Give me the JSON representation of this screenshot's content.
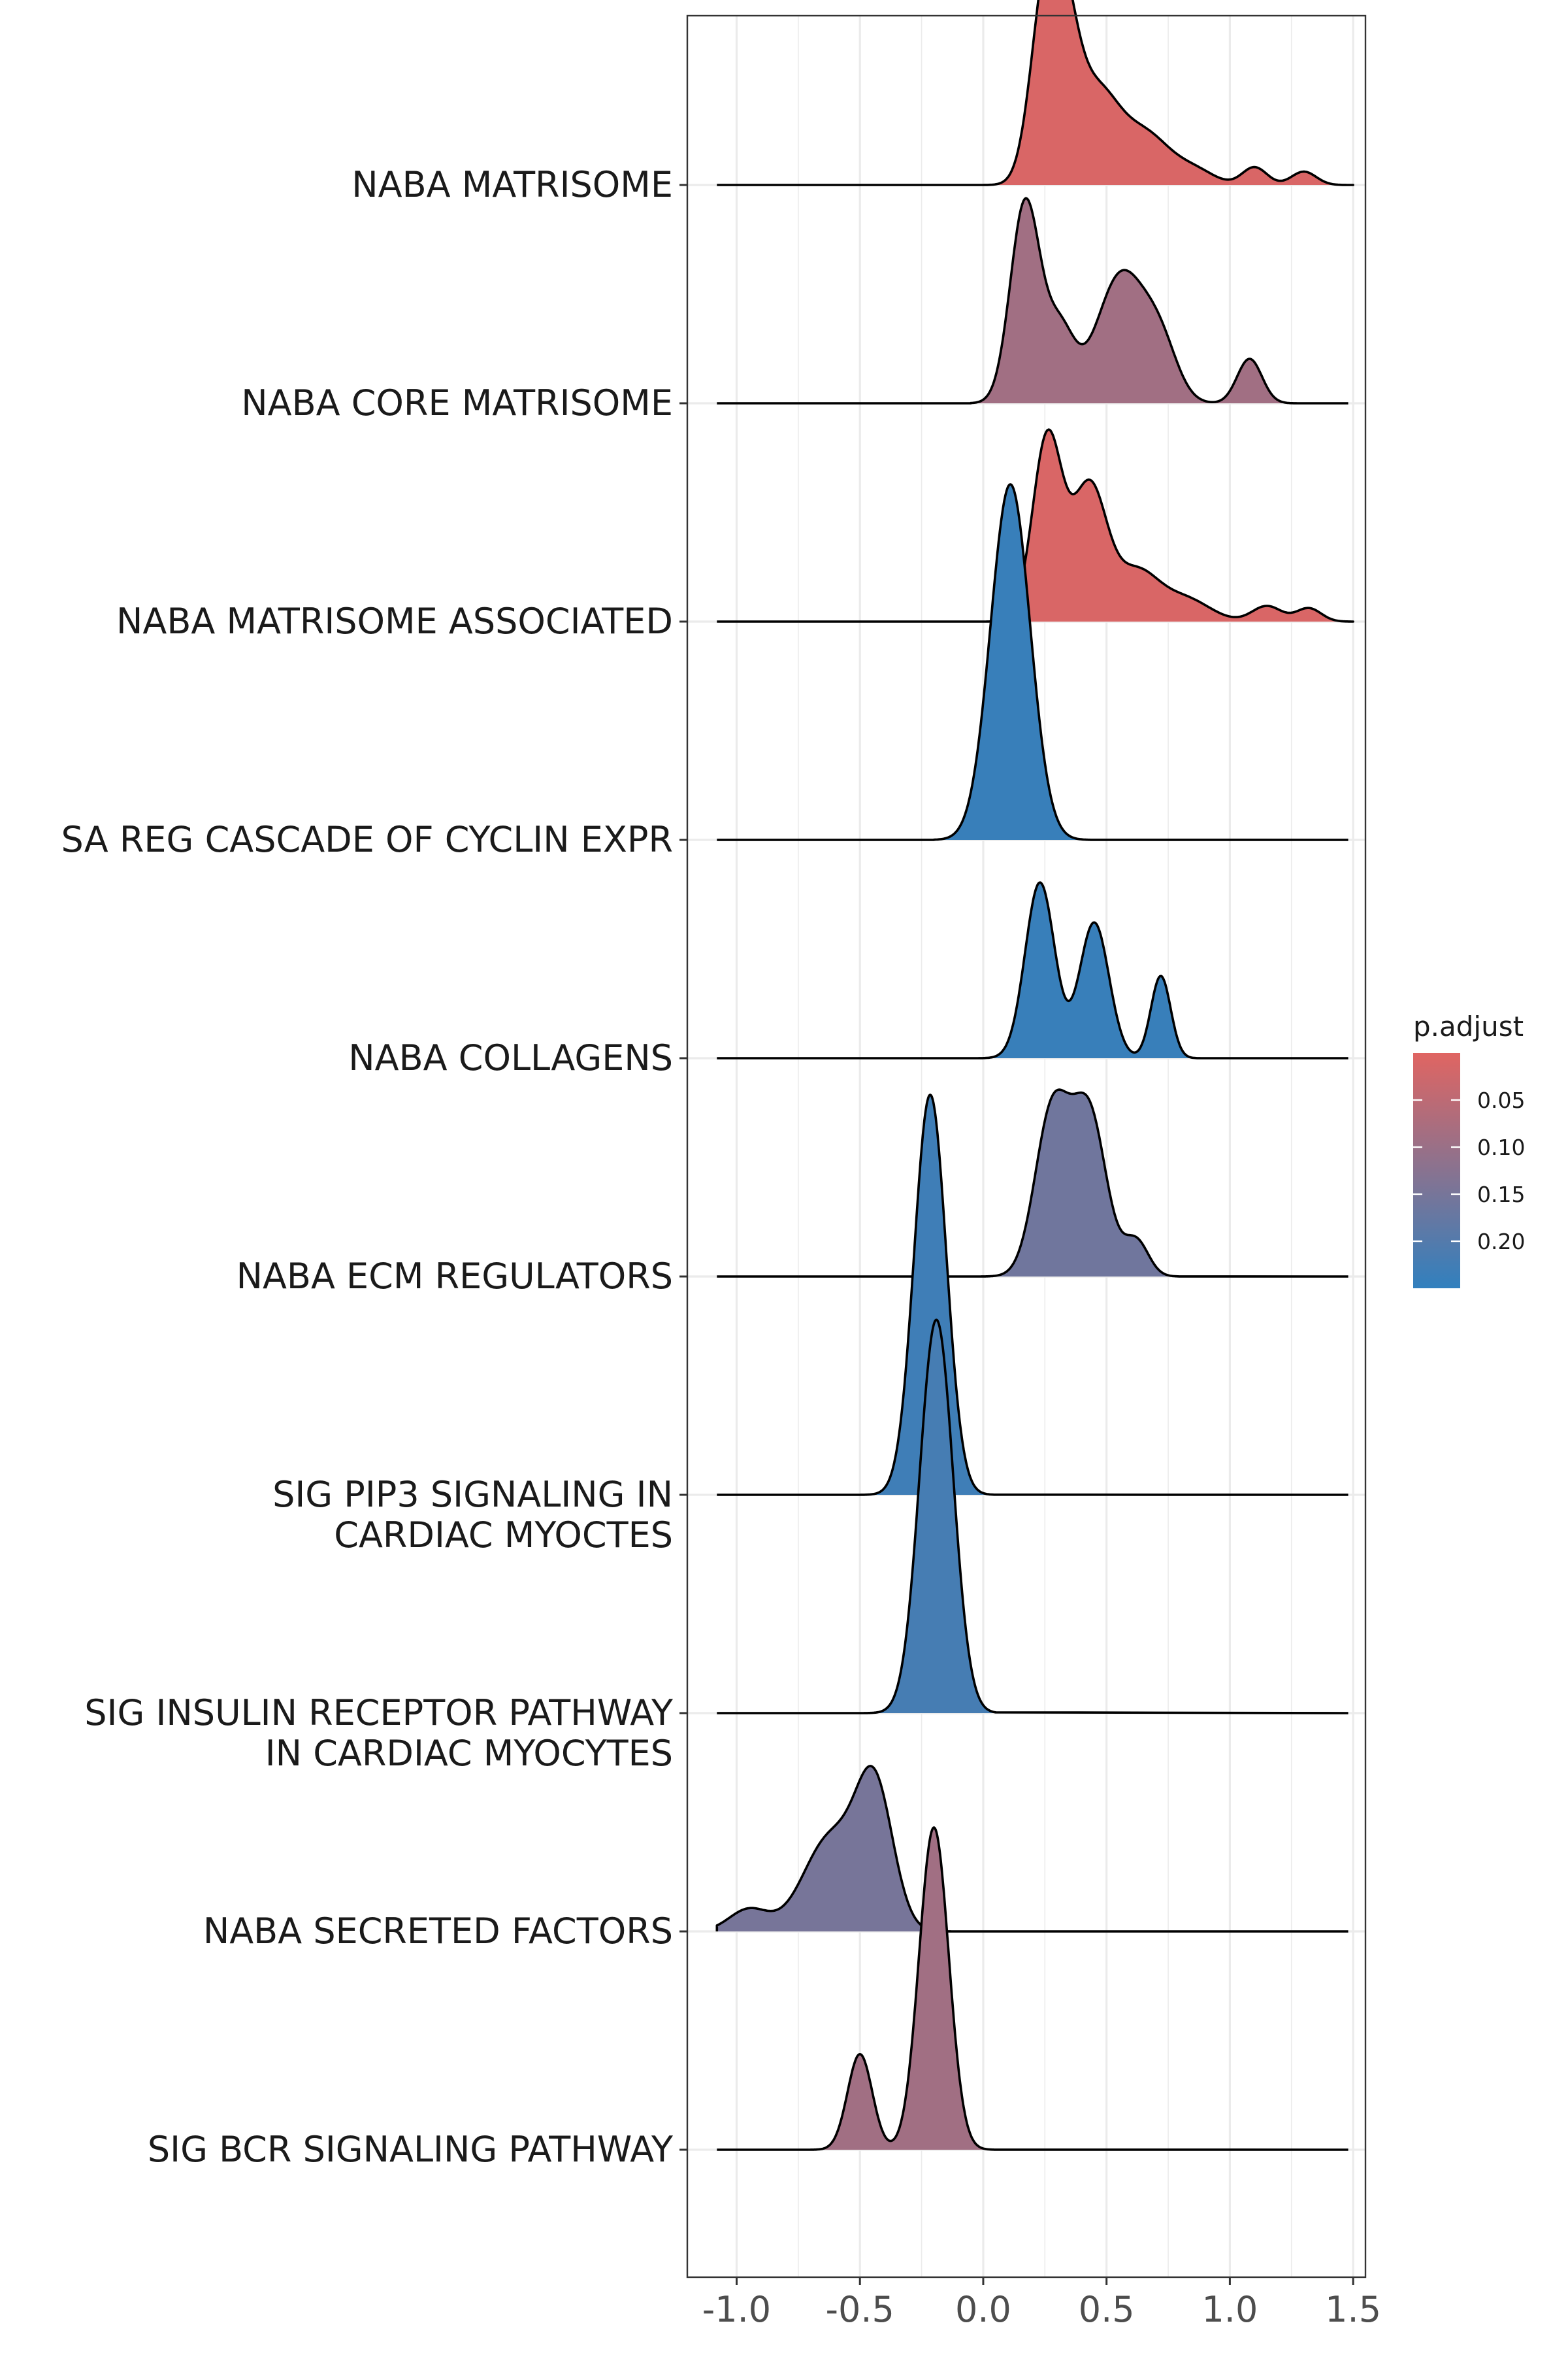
{
  "chart_data": {
    "type": "ridgeline",
    "categories": [
      "NABA MATRISOME",
      "NABA CORE MATRISOME",
      "NABA MATRISOME ASSOCIATED",
      "SA REG CASCADE OF CYCLIN EXPR",
      "NABA COLLAGENS",
      "NABA ECM REGULATORS",
      "SIG PIP3 SIGNALING IN CARDIAC MYOCTES",
      "SIG INSULIN RECEPTOR PATHWAY IN CARDIAC MYOCYTES",
      "NABA SECRETED FACTORS",
      "SIG BCR SIGNALING PATHWAY"
    ],
    "category_labels": [
      [
        "NABA MATRISOME"
      ],
      [
        "NABA CORE MATRISOME"
      ],
      [
        "NABA MATRISOME ASSOCIATED"
      ],
      [
        "SA REG CASCADE OF CYCLIN EXPR"
      ],
      [
        "NABA COLLAGENS"
      ],
      [
        "NABA ECM REGULATORS"
      ],
      [
        "SIG PIP3 SIGNALING IN",
        "CARDIAC MYOCTES"
      ],
      [
        "SIG INSULIN RECEPTOR PATHWAY",
        "IN CARDIAC MYOCYTES"
      ],
      [
        "NABA SECRETED FACTORS"
      ],
      [
        "SIG BCR SIGNALING PATHWAY"
      ]
    ],
    "series": [
      {
        "category": "NABA MATRISOME",
        "p_adjust": 0.01,
        "x_range": [
          -0.1,
          1.5
        ],
        "peaks": [
          [
            0.25,
            0.06,
            0.78
          ],
          [
            0.33,
            0.06,
            0.55
          ],
          [
            0.46,
            0.09,
            0.4
          ],
          [
            0.66,
            0.1,
            0.22
          ],
          [
            0.86,
            0.08,
            0.06
          ],
          [
            1.1,
            0.05,
            0.08
          ],
          [
            1.3,
            0.05,
            0.06
          ]
        ]
      },
      {
        "category": "NABA CORE MATRISOME",
        "p_adjust": 0.09,
        "x_range": [
          -0.05,
          1.3
        ],
        "peaks": [
          [
            0.17,
            0.06,
            0.9
          ],
          [
            0.31,
            0.06,
            0.32
          ],
          [
            0.56,
            0.1,
            0.58
          ],
          [
            0.72,
            0.07,
            0.22
          ],
          [
            1.08,
            0.05,
            0.2
          ]
        ]
      },
      {
        "category": "NABA MATRISOME ASSOCIATED",
        "p_adjust": 0.01,
        "x_range": [
          -0.05,
          1.5
        ],
        "peaks": [
          [
            0.26,
            0.06,
            0.83
          ],
          [
            0.43,
            0.07,
            0.6
          ],
          [
            0.62,
            0.09,
            0.22
          ],
          [
            0.82,
            0.1,
            0.1
          ],
          [
            1.15,
            0.06,
            0.07
          ],
          [
            1.32,
            0.05,
            0.06
          ]
        ]
      },
      {
        "category": "SA REG CASCADE OF CYCLIN EXPR",
        "p_adjust": 0.24,
        "x_range": [
          -0.2,
          0.45
        ],
        "peaks": [
          [
            0.11,
            0.08,
            1.6
          ]
        ]
      },
      {
        "category": "NABA COLLAGENS",
        "p_adjust": 0.24,
        "x_range": [
          -0.05,
          0.9
        ],
        "peaks": [
          [
            0.23,
            0.06,
            0.79
          ],
          [
            0.45,
            0.06,
            0.61
          ],
          [
            0.72,
            0.04,
            0.37
          ]
        ]
      },
      {
        "category": "NABA ECM REGULATORS",
        "p_adjust": 0.16,
        "x_range": [
          -0.05,
          0.8
        ],
        "peaks": [
          [
            0.28,
            0.07,
            0.74
          ],
          [
            0.43,
            0.07,
            0.72
          ],
          [
            0.62,
            0.05,
            0.16
          ]
        ]
      },
      {
        "category": "SIG PIP3 SIGNALING IN CARDIAC MYOCTES",
        "p_adjust": 0.23,
        "x_range": [
          -0.55,
          0.05
        ],
        "peaks": [
          [
            -0.215,
            0.065,
            1.8
          ]
        ]
      },
      {
        "category": "SIG INSULIN RECEPTOR PATHWAY IN CARDIAC MYOCYTES",
        "p_adjust": 0.22,
        "x_range": [
          -0.5,
          0.05
        ],
        "peaks": [
          [
            -0.19,
            0.068,
            1.77
          ]
        ]
      },
      {
        "category": "NABA SECRETED FACTORS",
        "p_adjust": 0.15,
        "x_range": [
          -1.08,
          0.0
        ],
        "peaks": [
          [
            -0.44,
            0.075,
            0.62
          ],
          [
            -0.62,
            0.11,
            0.42
          ],
          [
            -0.95,
            0.08,
            0.1
          ]
        ]
      },
      {
        "category": "SIG BCR SIGNALING PATHWAY",
        "p_adjust": 0.09,
        "x_range": [
          -0.72,
          0.05
        ],
        "peaks": [
          [
            -0.2,
            0.06,
            1.45
          ],
          [
            -0.5,
            0.05,
            0.43
          ]
        ]
      }
    ],
    "xlim": [
      -1.2,
      1.55
    ],
    "x_ticks": [
      "-1.0",
      "-0.5",
      "0.0",
      "0.5",
      "1.0",
      "1.5"
    ],
    "x_tick_values": [
      -1.0,
      -0.5,
      0.0,
      0.5,
      1.0,
      1.5
    ],
    "grid": true,
    "legend": {
      "title": "p.adjust",
      "position": "right",
      "ticks": [
        "0.05",
        "0.10",
        "0.15",
        "0.20"
      ],
      "tick_values": [
        0.05,
        0.1,
        0.15,
        0.2
      ],
      "range": [
        0.0,
        0.25
      ],
      "color_low": "#E06562",
      "color_high": "#3180BE"
    },
    "colors": {
      "panel_border": "#333333",
      "grid": "#EBEBEB",
      "outline": "#000000",
      "axis_text": "#4D4D4D"
    }
  }
}
